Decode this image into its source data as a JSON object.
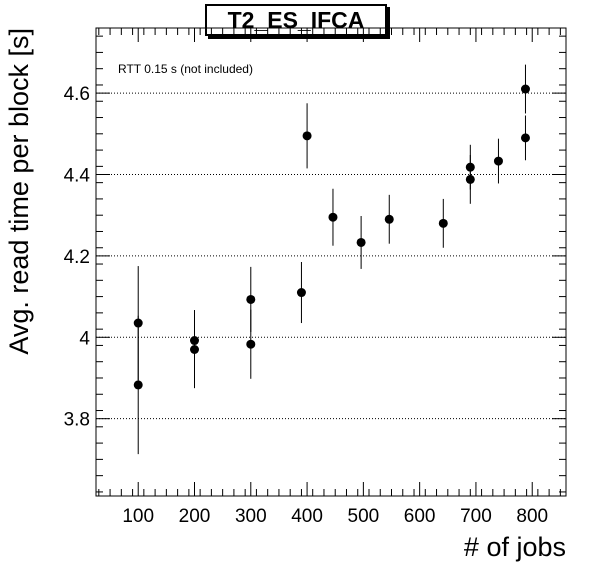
{
  "chart_data": {
    "type": "scatter",
    "title": "T2_ES_IFCA",
    "xlabel": "# of jobs",
    "ylabel": "Avg. read time per block [s]",
    "annotation": "RTT 0.15 s (not included)",
    "xlim": [
      25,
      860
    ],
    "ylim": [
      3.61,
      4.76
    ],
    "x_ticks": [
      100,
      200,
      300,
      400,
      500,
      600,
      700,
      800
    ],
    "y_ticks": [
      3.8,
      4,
      4.2,
      4.4,
      4.6
    ],
    "y_tick_labels": [
      "3.8",
      "4",
      "4.2",
      "4.4",
      "4.6"
    ],
    "grid": "horizontal dotted",
    "points": [
      {
        "x": 100,
        "y": 4.035,
        "err": 0.14
      },
      {
        "x": 100,
        "y": 3.883,
        "err": 0.17
      },
      {
        "x": 200,
        "y": 3.992,
        "err": 0.075
      },
      {
        "x": 200,
        "y": 3.97,
        "err": 0.095
      },
      {
        "x": 300,
        "y": 4.093,
        "err": 0.08
      },
      {
        "x": 300,
        "y": 3.983,
        "err": 0.085
      },
      {
        "x": 390,
        "y": 4.11,
        "err": 0.075
      },
      {
        "x": 400,
        "y": 4.495,
        "err": 0.08
      },
      {
        "x": 446,
        "y": 4.295,
        "err": 0.07
      },
      {
        "x": 496,
        "y": 4.233,
        "err": 0.065
      },
      {
        "x": 546,
        "y": 4.29,
        "err": 0.06
      },
      {
        "x": 642,
        "y": 4.28,
        "err": 0.06
      },
      {
        "x": 690,
        "y": 4.418,
        "err": 0.055
      },
      {
        "x": 690,
        "y": 4.388,
        "err": 0.06
      },
      {
        "x": 740,
        "y": 4.433,
        "err": 0.055
      },
      {
        "x": 788,
        "y": 4.61,
        "err": 0.06
      },
      {
        "x": 788,
        "y": 4.49,
        "err": 0.055
      }
    ]
  }
}
